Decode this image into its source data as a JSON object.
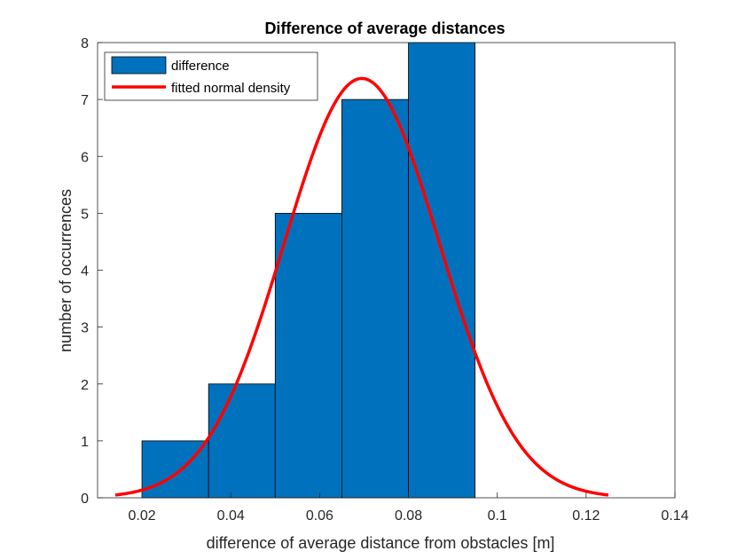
{
  "chart_data": {
    "type": "bar",
    "title": "Difference of average distances",
    "xlabel": "difference of average distance from obstacles [m]",
    "ylabel": "number of occurrences",
    "xlim": [
      0.01,
      0.14
    ],
    "ylim": [
      0,
      8
    ],
    "xticks": [
      0.02,
      0.04,
      0.06,
      0.08,
      0.1,
      0.12,
      0.14
    ],
    "xtick_labels": [
      "0.02",
      "0.04",
      "0.06",
      "0.08",
      "0.1",
      "0.12",
      "0.14"
    ],
    "yticks": [
      0,
      1,
      2,
      3,
      4,
      5,
      6,
      7,
      8
    ],
    "ytick_labels": [
      "0",
      "1",
      "2",
      "3",
      "4",
      "5",
      "6",
      "7",
      "8"
    ],
    "grid": false,
    "legend_position": "top-left",
    "bins": [
      {
        "x0": 0.02,
        "x1": 0.035,
        "count": 1
      },
      {
        "x0": 0.035,
        "x1": 0.05,
        "count": 2
      },
      {
        "x0": 0.05,
        "x1": 0.065,
        "count": 5
      },
      {
        "x0": 0.065,
        "x1": 0.08,
        "count": 7
      },
      {
        "x0": 0.08,
        "x1": 0.095,
        "count": 8
      }
    ],
    "fit": {
      "mean": 0.0695,
      "sd": 0.0175,
      "peak": 7.37,
      "x_start": 0.014,
      "x_end": 0.125
    },
    "series": [
      {
        "name": "difference",
        "kind": "histogram",
        "color": "#0072BD"
      },
      {
        "name": "fitted normal density",
        "kind": "line",
        "color": "#FF0000"
      }
    ]
  }
}
